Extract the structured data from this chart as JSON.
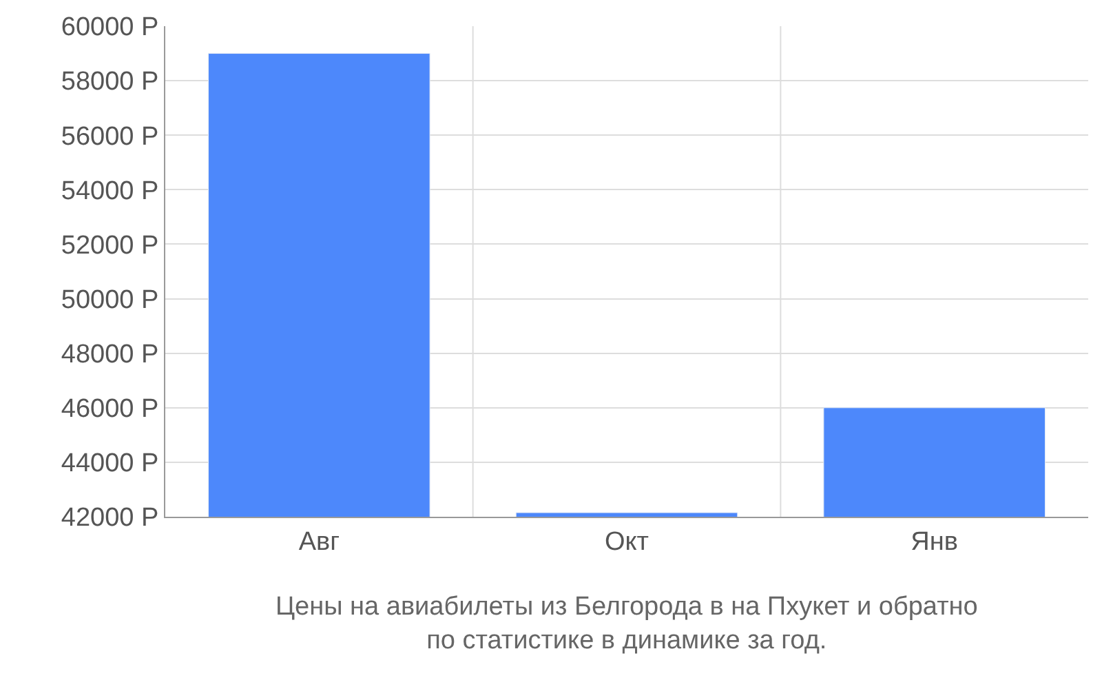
{
  "chart_data": {
    "type": "bar",
    "categories": [
      "Авг",
      "Окт",
      "Янв"
    ],
    "values": [
      59000,
      42150,
      46000
    ],
    "color": "#4d88fb",
    "ylim": [
      42000,
      60000
    ],
    "yticks": [
      {
        "value": 42000,
        "label": "42000 Р"
      },
      {
        "value": 44000,
        "label": "44000 Р"
      },
      {
        "value": 46000,
        "label": "46000 Р"
      },
      {
        "value": 48000,
        "label": "48000 Р"
      },
      {
        "value": 50000,
        "label": "50000 Р"
      },
      {
        "value": 52000,
        "label": "52000 Р"
      },
      {
        "value": 54000,
        "label": "54000 Р"
      },
      {
        "value": 56000,
        "label": "56000 Р"
      },
      {
        "value": 58000,
        "label": "58000 Р"
      },
      {
        "value": 60000,
        "label": "60000 Р"
      }
    ],
    "grid": true,
    "annotations": [
      "Цены на авиабилеты из Белгорода в на Пхукет и обратно\nпо статистике в динамике за год."
    ]
  }
}
